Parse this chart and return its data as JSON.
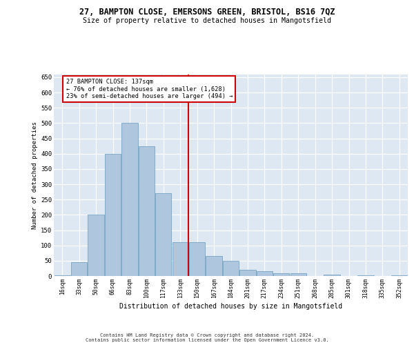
{
  "title": "27, BAMPTON CLOSE, EMERSONS GREEN, BRISTOL, BS16 7QZ",
  "subtitle": "Size of property relative to detached houses in Mangotsfield",
  "xlabel": "Distribution of detached houses by size in Mangotsfield",
  "ylabel": "Number of detached properties",
  "categories": [
    "16sqm",
    "33sqm",
    "50sqm",
    "66sqm",
    "83sqm",
    "100sqm",
    "117sqm",
    "133sqm",
    "150sqm",
    "167sqm",
    "184sqm",
    "201sqm",
    "217sqm",
    "234sqm",
    "251sqm",
    "268sqm",
    "285sqm",
    "301sqm",
    "318sqm",
    "335sqm",
    "352sqm"
  ],
  "values": [
    2,
    45,
    200,
    400,
    500,
    425,
    270,
    110,
    110,
    65,
    50,
    20,
    15,
    10,
    8,
    0,
    5,
    0,
    2,
    0,
    2
  ],
  "bar_color": "#aec6de",
  "bar_edge_color": "#6699bb",
  "vline_x": 7.5,
  "vline_color": "#cc0000",
  "property_label": "27 BAMPTON CLOSE: 137sqm",
  "annotation_line1": "← 76% of detached houses are smaller (1,628)",
  "annotation_line2": "23% of semi-detached houses are larger (494) →",
  "annotation_box_facecolor": "#ffffff",
  "annotation_box_edgecolor": "#cc0000",
  "plot_bg": "#dde8f2",
  "footer1": "Contains HM Land Registry data © Crown copyright and database right 2024.",
  "footer2": "Contains public sector information licensed under the Open Government Licence v3.0.",
  "ylim": [
    0,
    660
  ],
  "yticks": [
    0,
    50,
    100,
    150,
    200,
    250,
    300,
    350,
    400,
    450,
    500,
    550,
    600,
    650
  ]
}
